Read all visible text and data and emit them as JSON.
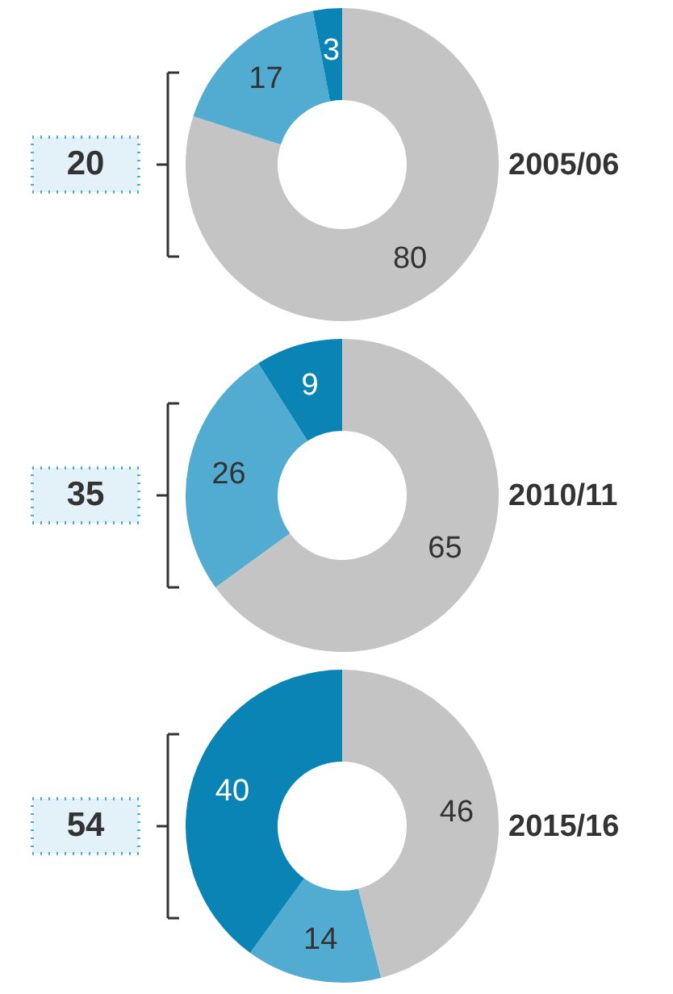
{
  "chart_data": [
    {
      "type": "donut",
      "title": "2005/06",
      "categories": [
        null,
        null,
        null
      ],
      "values": [
        80,
        17,
        3
      ],
      "colors": [
        "#c4c4c4",
        "#52abd0",
        "#0a83b5"
      ],
      "data_labels": true,
      "annotations": [
        "20"
      ]
    },
    {
      "type": "donut",
      "title": "2010/11",
      "categories": [
        null,
        null,
        null
      ],
      "values": [
        65,
        26,
        9
      ],
      "colors": [
        "#c4c4c4",
        "#52abd0",
        "#0a83b5"
      ],
      "data_labels": true,
      "annotations": [
        "35"
      ]
    },
    {
      "type": "donut",
      "title": "2015/16",
      "categories": [
        null,
        null,
        null
      ],
      "values": [
        46,
        14,
        40
      ],
      "colors": [
        "#c4c4c4",
        "#52abd0",
        "#0a83b5"
      ],
      "data_labels": true,
      "annotations": [
        "54"
      ]
    }
  ]
}
